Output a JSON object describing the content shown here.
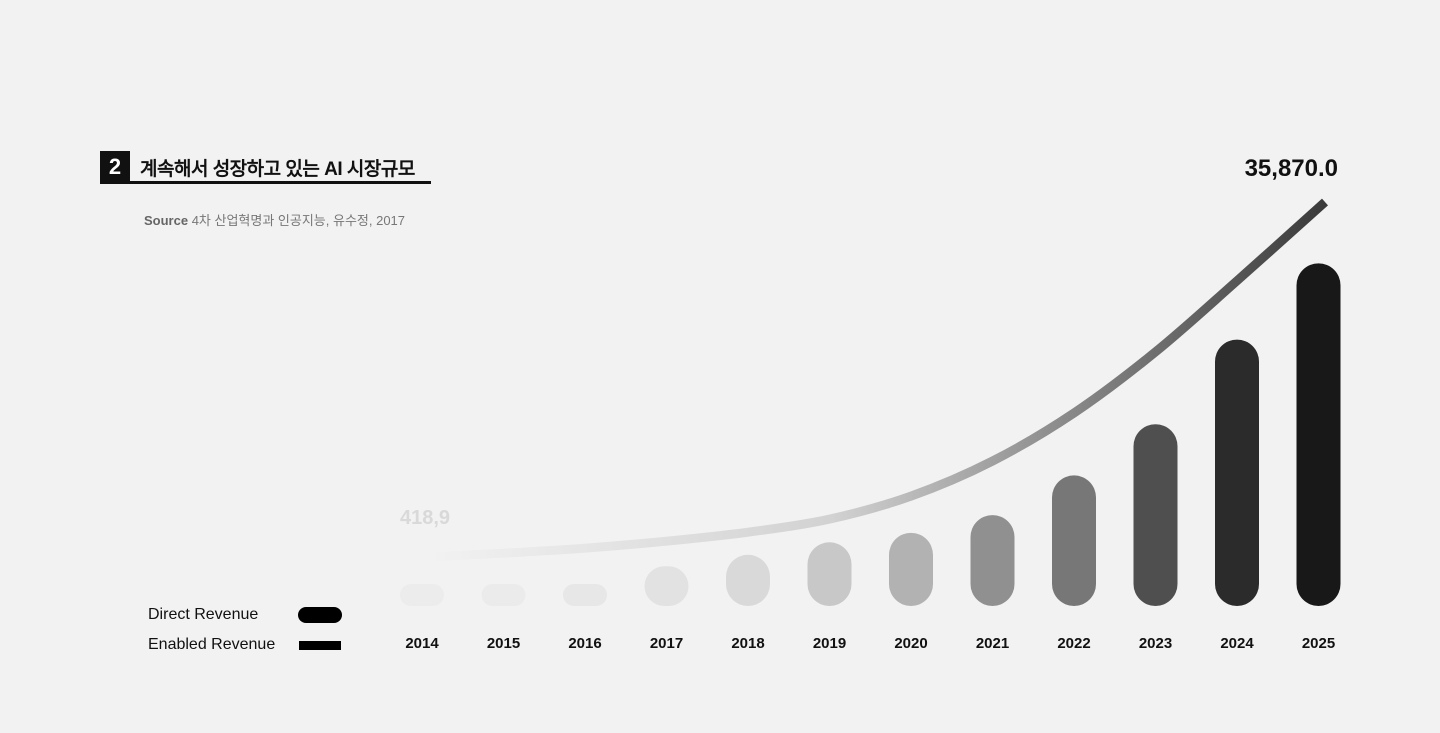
{
  "heading": {
    "number": "2",
    "title": "계속해서 성장하고 있는 AI 시장규모"
  },
  "source": {
    "label": "Source",
    "text": "4차 산업혁명과 인공지능, 유수정, 2017"
  },
  "legend": {
    "direct": "Direct Revenue",
    "enabled": "Enabled Revenue"
  },
  "colors": {
    "background": "#f2f2f2",
    "text": "#111111"
  },
  "chart_data": {
    "type": "bar",
    "categories": [
      "2014",
      "2015",
      "2016",
      "2017",
      "2018",
      "2019",
      "2020",
      "2021",
      "2022",
      "2023",
      "2024",
      "2025"
    ],
    "series": [
      {
        "name": "Direct Revenue",
        "type": "bar",
        "values": [
          200,
          200,
          1200,
          3800,
          4900,
          6100,
          7000,
          8700,
          12500,
          17400,
          25500,
          32800
        ],
        "colors": [
          "#ececec",
          "#ebebeb",
          "#e7e7e7",
          "#e2e2e2",
          "#d9d9d9",
          "#c8c8c8",
          "#b2b2b2",
          "#909090",
          "#777777",
          "#4f4f4f",
          "#2b2b2b",
          "#181818"
        ]
      },
      {
        "name": "Enabled Revenue",
        "type": "line",
        "values": [
          418.9,
          800,
          1300,
          2000,
          2900,
          4200,
          6500,
          10000,
          14800,
          20900,
          28000,
          35870.0
        ]
      }
    ],
    "annotations": [
      "418,9",
      "35,870.0"
    ],
    "ylim": [
      0,
      37000
    ]
  }
}
